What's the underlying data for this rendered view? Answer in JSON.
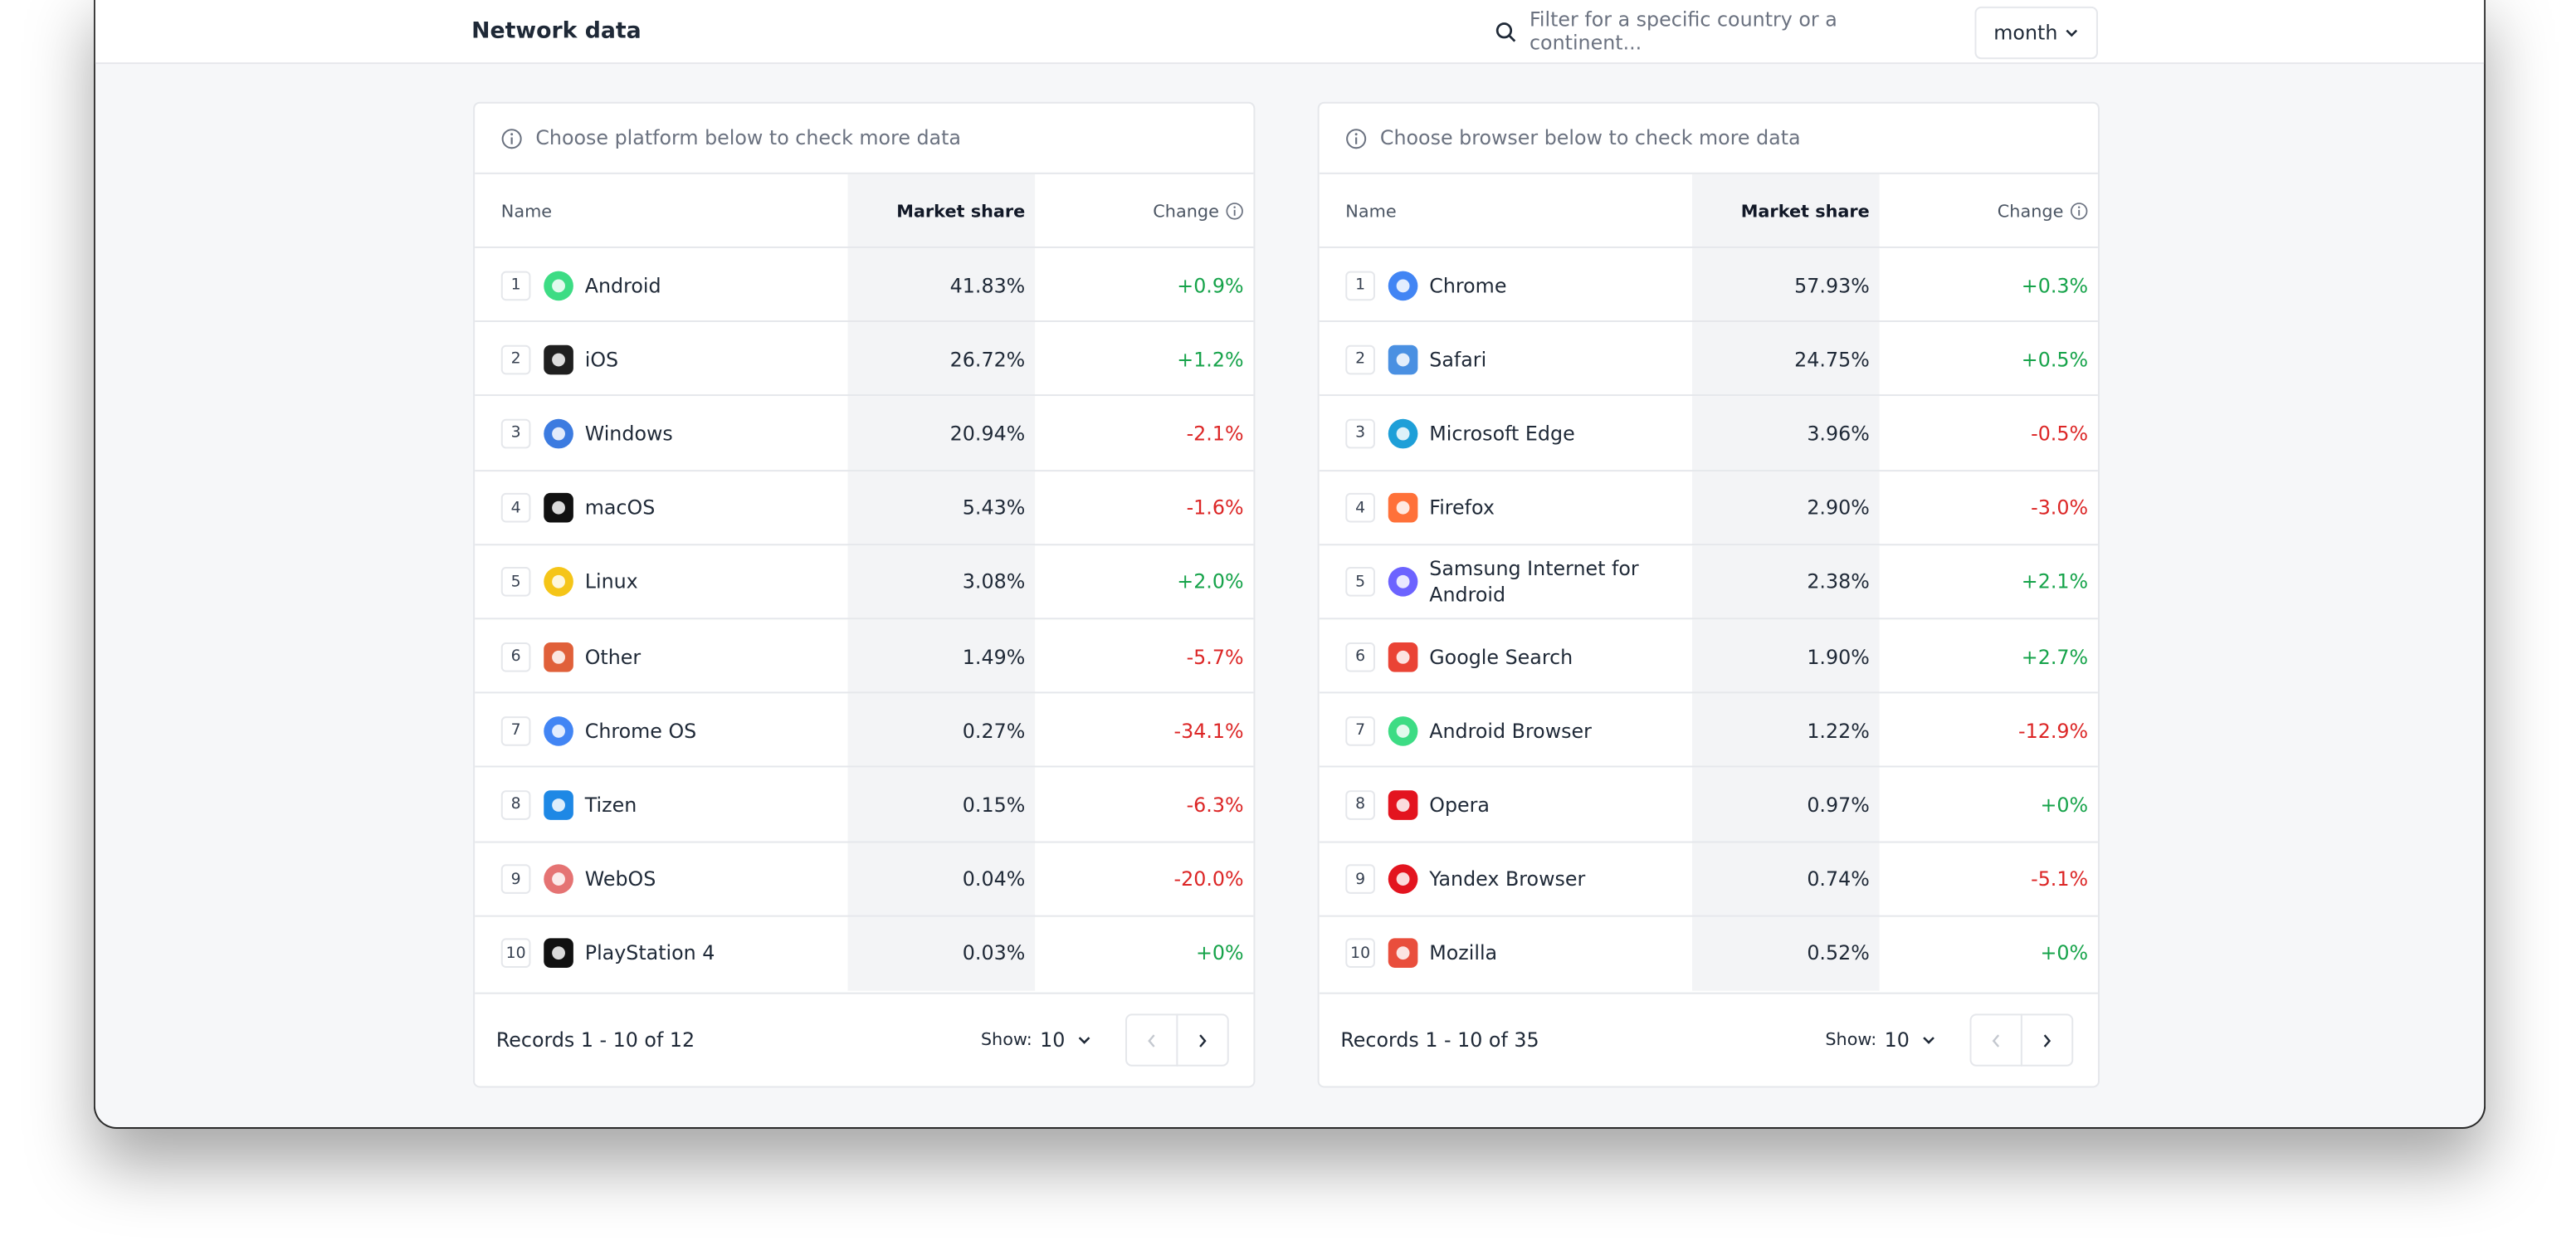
{
  "header": {
    "title": "Network data",
    "search_placeholder": "Filter for a specific country or a continent...",
    "period": "month"
  },
  "tables": [
    {
      "hint": "Choose platform below to check more data",
      "columns": [
        "Name",
        "Market share",
        "Change"
      ],
      "rows": [
        {
          "rank": "1",
          "name": "Android",
          "share": "41.83%",
          "change": "+0.9%"
        },
        {
          "rank": "2",
          "name": "iOS",
          "share": "26.72%",
          "change": "+1.2%"
        },
        {
          "rank": "3",
          "name": "Windows",
          "share": "20.94%",
          "change": "-2.1%"
        },
        {
          "rank": "4",
          "name": "macOS",
          "share": "5.43%",
          "change": "-1.6%"
        },
        {
          "rank": "5",
          "name": "Linux",
          "share": "3.08%",
          "change": "+2.0%"
        },
        {
          "rank": "6",
          "name": "Other",
          "share": "1.49%",
          "change": "-5.7%"
        },
        {
          "rank": "7",
          "name": "Chrome OS",
          "share": "0.27%",
          "change": "-34.1%"
        },
        {
          "rank": "8",
          "name": "Tizen",
          "share": "0.15%",
          "change": "-6.3%"
        },
        {
          "rank": "9",
          "name": "WebOS",
          "share": "0.04%",
          "change": "-20.0%"
        },
        {
          "rank": "10",
          "name": "PlayStation 4",
          "share": "0.03%",
          "change": "+0%"
        }
      ],
      "records": "Records 1 - 10 of 12",
      "show_label": "Show:",
      "show_value": "10"
    },
    {
      "hint": "Choose browser below to check more data",
      "columns": [
        "Name",
        "Market share",
        "Change"
      ],
      "rows": [
        {
          "rank": "1",
          "name": "Chrome",
          "share": "57.93%",
          "change": "+0.3%"
        },
        {
          "rank": "2",
          "name": "Safari",
          "share": "24.75%",
          "change": "+0.5%"
        },
        {
          "rank": "3",
          "name": "Microsoft Edge",
          "share": "3.96%",
          "change": "-0.5%"
        },
        {
          "rank": "4",
          "name": "Firefox",
          "share": "2.90%",
          "change": "-3.0%"
        },
        {
          "rank": "5",
          "name": "Samsung Internet for Android",
          "share": "2.38%",
          "change": "+2.1%"
        },
        {
          "rank": "6",
          "name": "Google Search",
          "share": "1.90%",
          "change": "+2.7%"
        },
        {
          "rank": "7",
          "name": "Android Browser",
          "share": "1.22%",
          "change": "-12.9%"
        },
        {
          "rank": "8",
          "name": "Opera",
          "share": "0.97%",
          "change": "+0%"
        },
        {
          "rank": "9",
          "name": "Yandex Browser",
          "share": "0.74%",
          "change": "-5.1%"
        },
        {
          "rank": "10",
          "name": "Mozilla",
          "share": "0.52%",
          "change": "+0%"
        }
      ],
      "records": "Records 1 - 10 of 35",
      "show_label": "Show:",
      "show_value": "10"
    }
  ]
}
